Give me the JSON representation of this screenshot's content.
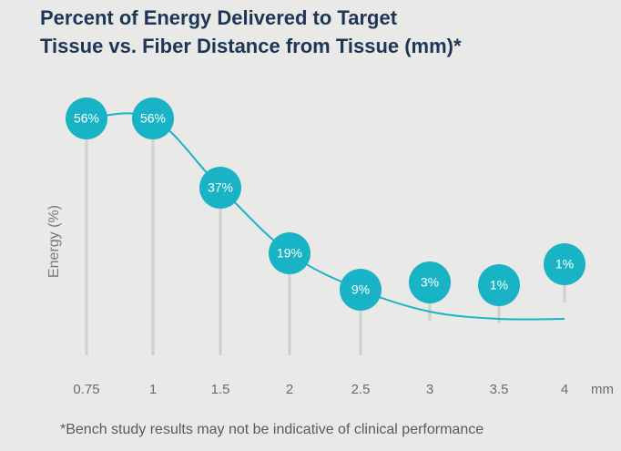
{
  "chart_data": {
    "type": "line",
    "title": "Percent of Energy Delivered to Target",
    "subtitle": "Tissue vs. Fiber Distance from Tissue (mm)*",
    "y_label": "Energy (%)",
    "x_unit": "mm",
    "footnote": "*Bench study results may not be indicative of clinical performance",
    "categories": [
      "0.75",
      "1",
      "1.5",
      "2",
      "2.5",
      "3",
      "3.5",
      "4"
    ],
    "values": [
      56,
      56,
      37,
      19,
      9,
      3,
      1,
      1
    ],
    "value_labels": [
      "56%",
      "56%",
      "37%",
      "19%",
      "9%",
      "3%",
      "1%",
      "1%"
    ],
    "color": "#19b3c6",
    "ylim": [
      0,
      60
    ]
  }
}
